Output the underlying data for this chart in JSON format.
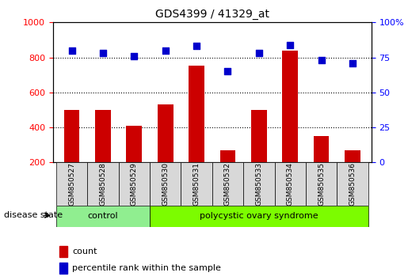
{
  "title": "GDS4399 / 41329_at",
  "samples": [
    "GSM850527",
    "GSM850528",
    "GSM850529",
    "GSM850530",
    "GSM850531",
    "GSM850532",
    "GSM850533",
    "GSM850534",
    "GSM850535",
    "GSM850536"
  ],
  "counts": [
    500,
    500,
    410,
    530,
    755,
    270,
    500,
    840,
    350,
    268
  ],
  "percentiles": [
    80,
    78,
    76,
    80,
    83,
    65,
    78,
    84,
    73,
    71
  ],
  "groups": [
    "control",
    "control",
    "control",
    "polycystic ovary syndrome",
    "polycystic ovary syndrome",
    "polycystic ovary syndrome",
    "polycystic ovary syndrome",
    "polycystic ovary syndrome",
    "polycystic ovary syndrome",
    "polycystic ovary syndrome"
  ],
  "bar_color": "#CC0000",
  "dot_color": "#0000CC",
  "ylim_left": [
    200,
    1000
  ],
  "ylim_right": [
    0,
    100
  ],
  "yticks_left": [
    200,
    400,
    600,
    800,
    1000
  ],
  "yticks_right": [
    0,
    25,
    50,
    75,
    100
  ],
  "ytick_right_labels": [
    "0",
    "25",
    "50",
    "75",
    "100%"
  ],
  "legend_count": "count",
  "legend_pct": "percentile rank within the sample",
  "disease_label": "disease state",
  "control_label": "control",
  "pcos_label": "polycystic ovary syndrome",
  "control_color": "#90EE90",
  "pcos_color": "#7CFC00",
  "sample_box_color": "#D8D8D8"
}
